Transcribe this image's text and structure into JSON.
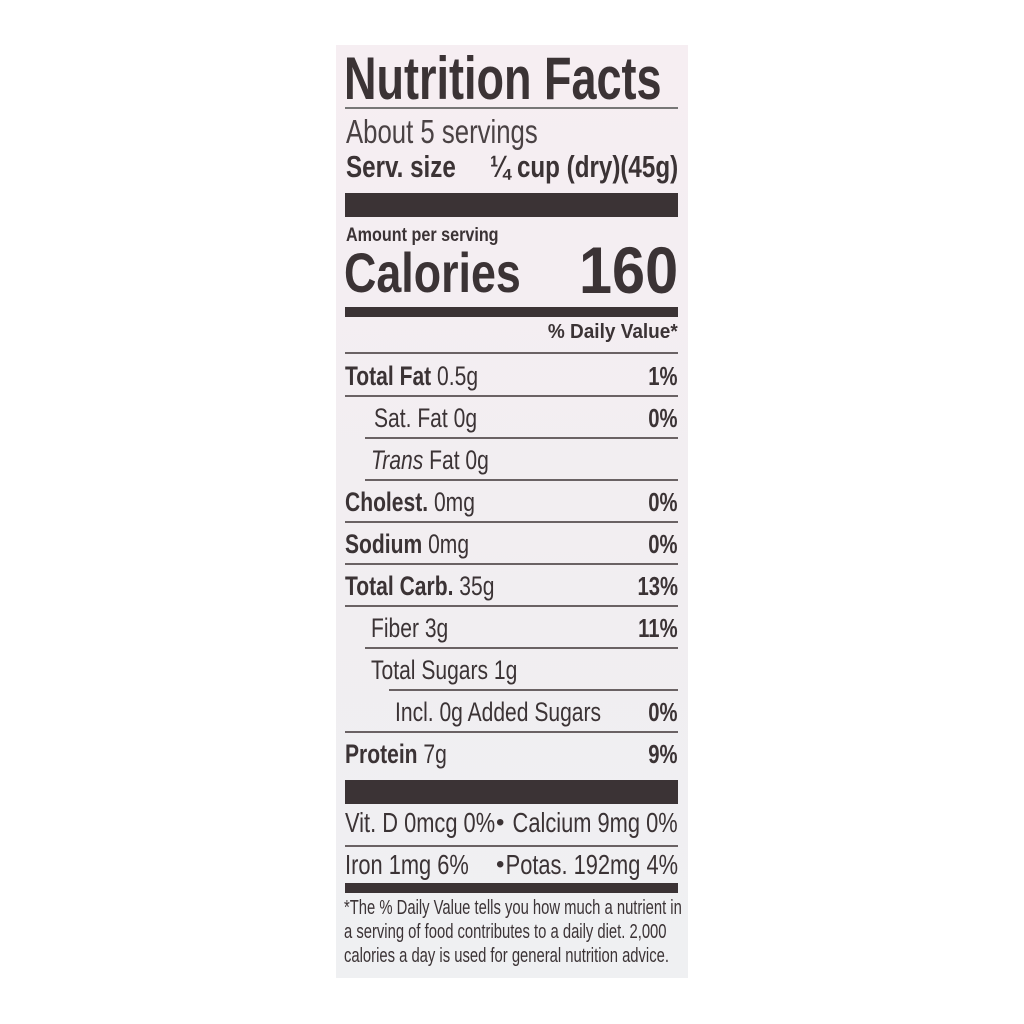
{
  "title": "Nutrition Facts",
  "servings": "About 5 servings",
  "serving_size": {
    "label": "Serv. size",
    "value": "¼ cup (dry)(45g)"
  },
  "amount_per_serving": "Amount per serving",
  "calories": {
    "label": "Calories",
    "value": "160"
  },
  "daily_value_header": "% Daily Value*",
  "nutrients": [
    {
      "name": "Total Fat",
      "amount": "0.5g",
      "dv": "1%"
    },
    {
      "name": "Sat. Fat",
      "amount": "0g",
      "dv": "0%"
    },
    {
      "name": "Trans",
      "amount": "Fat 0g",
      "dv": ""
    },
    {
      "name": "Cholest.",
      "amount": "0mg",
      "dv": "0%"
    },
    {
      "name": "Sodium",
      "amount": "0mg",
      "dv": "0%"
    },
    {
      "name": "Total Carb.",
      "amount": "35g",
      "dv": "13%"
    },
    {
      "name": "Fiber",
      "amount": "3g",
      "dv": "11%"
    },
    {
      "name": "Total Sugars",
      "amount": "1g",
      "dv": ""
    },
    {
      "name": "Incl. 0g Added Sugars",
      "amount": "",
      "dv": "0%"
    },
    {
      "name": "Protein",
      "amount": "7g",
      "dv": "9%"
    }
  ],
  "micronutrients": [
    {
      "left": "Vit. D 0mcg 0%",
      "right": "Calcium 9mg 0%"
    },
    {
      "left": "Iron 1mg 6%",
      "right": "Potas. 192mg 4%"
    }
  ],
  "separator": "•",
  "footnote": [
    "*The % Daily Value tells you how much a nutrient in",
    "a serving of food contributes to a daily diet. 2,000",
    "calories a day is used for general nutrition advice."
  ]
}
